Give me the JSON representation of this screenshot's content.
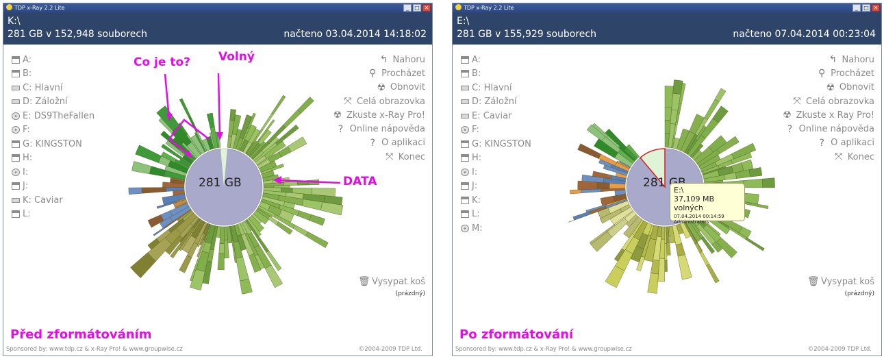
{
  "left": {
    "title": "TDP x-Ray 2.2 Lite",
    "path": "K:\\",
    "info": "281 GB v 152,948 souborech",
    "loaded": "načteno 03.04.2014 14:18:02",
    "drives": [
      {
        "label": "A:",
        "icon": "floppy-icon"
      },
      {
        "label": "B:",
        "icon": "floppy-icon"
      },
      {
        "label": "C: Hlavní",
        "icon": "hdd-icon"
      },
      {
        "label": "D: Záložní",
        "icon": "hdd-icon"
      },
      {
        "label": "E: DS9TheFallen",
        "icon": "disc-icon"
      },
      {
        "label": "F:",
        "icon": "disc-icon"
      },
      {
        "label": "G: KINGSTON",
        "icon": "floppy-icon"
      },
      {
        "label": "H:",
        "icon": "floppy-icon"
      },
      {
        "label": "I:",
        "icon": "disc-icon"
      },
      {
        "label": "J:",
        "icon": "floppy-icon"
      },
      {
        "label": "K: Caviar",
        "icon": "hdd-icon"
      },
      {
        "label": "L:",
        "icon": "floppy-icon"
      }
    ],
    "center_label": "281 GB",
    "annotations": {
      "question": "Co je to?",
      "free": "Volný",
      "data": "DATA"
    },
    "caption": "Před zformátováním"
  },
  "right": {
    "title": "TDP x-Ray 2.2 Lite",
    "path": "E:\\",
    "info": "281 GB v 155,929 souborech",
    "loaded": "načteno 07.04.2014 00:23:04",
    "drives": [
      {
        "label": "A:",
        "icon": "floppy-icon"
      },
      {
        "label": "B:",
        "icon": "floppy-icon"
      },
      {
        "label": "C: Hlavní",
        "icon": "hdd-icon"
      },
      {
        "label": "D: Záložní",
        "icon": "hdd-icon"
      },
      {
        "label": "E: Caviar",
        "icon": "hdd-icon"
      },
      {
        "label": "F:",
        "icon": "disc-icon"
      },
      {
        "label": "G: KINGSTON",
        "icon": "floppy-icon"
      },
      {
        "label": "H:",
        "icon": "floppy-icon"
      },
      {
        "label": "I:",
        "icon": "disc-icon"
      },
      {
        "label": "J:",
        "icon": "floppy-icon"
      },
      {
        "label": "K:",
        "icon": "floppy-icon"
      },
      {
        "label": "L:",
        "icon": "floppy-icon"
      },
      {
        "label": "M:",
        "icon": "disc-icon"
      }
    ],
    "center_label": "281 GB",
    "tooltip": {
      "line1": "E:\\",
      "line2": "37,109 MB volných",
      "line3": "07.04.2014 00:14:59",
      "line4": "Administrators"
    },
    "caption": "Po zformátování"
  },
  "actions": [
    {
      "label": "Nahoru",
      "icon": "up-arrow-icon",
      "glyph": "↰"
    },
    {
      "label": "Procházet",
      "icon": "search-icon",
      "glyph": "⚲"
    },
    {
      "label": "Obnovit",
      "icon": "radiation-icon",
      "glyph": "☢"
    },
    {
      "label": "Celá obrazovka",
      "icon": "fullscreen-icon",
      "glyph": "⤧"
    },
    {
      "label": "Zkuste x-Ray Pro!",
      "icon": "radiation-icon",
      "glyph": "☢"
    },
    {
      "label": "Online nápověda",
      "icon": "help-icon",
      "glyph": "?"
    },
    {
      "label": "O aplikaci",
      "icon": "help-icon",
      "glyph": "?"
    },
    {
      "label": "Konec",
      "icon": "exit-icon",
      "glyph": "⤧"
    }
  ],
  "actions_right": [
    {
      "label": "Nahoru",
      "icon": "up-arrow-icon",
      "glyph": "↰"
    },
    {
      "label": "Procházet",
      "icon": "search-icon",
      "glyph": "⚲"
    },
    {
      "label": "Obnovit",
      "icon": "radiation-icon",
      "glyph": "☢"
    },
    {
      "label": "Celá obrazovka",
      "icon": "fullscreen-icon",
      "glyph": "⤧"
    },
    {
      "label": "Zkuste x Ray Pro!",
      "icon": "radiation-icon",
      "glyph": "☢"
    },
    {
      "label": "Online nápověda",
      "icon": "help-icon",
      "glyph": "?"
    },
    {
      "label": "O aplikaci",
      "icon": "help-icon",
      "glyph": "?"
    },
    {
      "label": "Konec",
      "icon": "exit-icon",
      "glyph": "⤧"
    }
  ],
  "trash": {
    "label": "Vysypat koš",
    "status": "(prázdný)"
  },
  "footer": {
    "sponsor": "Sponsored by: www.tdp.cz & x-Ray Pro! & www.groupwise.cz",
    "copyright": "©2004-2009 TDP Ltd."
  },
  "window_buttons": {
    "minimize": "_",
    "maximize": "□",
    "close": "✕"
  },
  "colors": {
    "header_bg": "#2e4468",
    "accent_annotation": "#e80ae8",
    "center_disk": "#a9a9cc",
    "free_space": "#dff3d6"
  }
}
